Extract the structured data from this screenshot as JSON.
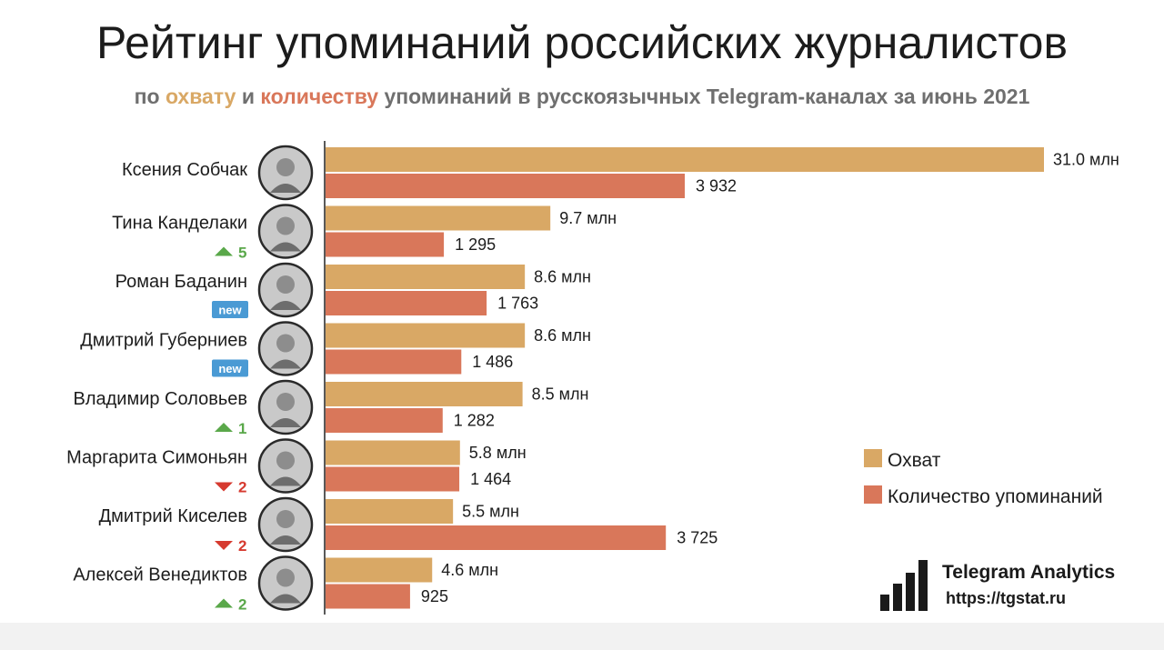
{
  "title": "Рейтинг упоминаний российских журналистов",
  "subtitle": {
    "part1": "по ",
    "reach_word": "охвату",
    "part2": " и ",
    "count_word": "количеству",
    "part3": " упоминаний в русскоязычных Telegram-каналах за июнь 2021"
  },
  "colors": {
    "reach": "#d9a865",
    "count": "#d9775a",
    "rank_up": "#5aa84a",
    "rank_down": "#d63a2f",
    "new_badge": "#4a9ad4"
  },
  "chart_data": {
    "type": "bar",
    "orientation": "horizontal",
    "categories": [
      "Ксения Собчак",
      "Тина Канделаки",
      "Роман Баданин",
      "Дмитрий Губерниев",
      "Владимир Соловьев",
      "Маргарита Симоньян",
      "Дмитрий Киселев",
      "Алексей Венедиктов"
    ],
    "series": [
      {
        "name": "Охват",
        "unit": "млн",
        "values": [
          31.0,
          9.7,
          8.6,
          8.6,
          8.5,
          5.8,
          5.5,
          4.6
        ],
        "labels": [
          "31.0 млн",
          "9.7 млн",
          "8.6 млн",
          "8.6 млн",
          "8.5 млн",
          "5.8 млн",
          "5.5 млн",
          "4.6 млн"
        ]
      },
      {
        "name": "Количество упоминаний",
        "values": [
          3932,
          1295,
          1763,
          1486,
          1282,
          1464,
          3725,
          925
        ],
        "labels": [
          "3 932",
          "1 295",
          "1 763",
          "1 486",
          "1 282",
          "1 464",
          "3 725",
          "925"
        ]
      }
    ],
    "rank_changes": [
      {
        "type": "none",
        "text": ""
      },
      {
        "type": "up",
        "text": "5"
      },
      {
        "type": "new",
        "text": "new"
      },
      {
        "type": "new",
        "text": "new"
      },
      {
        "type": "up",
        "text": "1"
      },
      {
        "type": "down",
        "text": "2"
      },
      {
        "type": "down",
        "text": "2"
      },
      {
        "type": "up",
        "text": "2"
      }
    ],
    "legend": [
      "Охват",
      "Количество упоминаний"
    ],
    "legend_position": "right",
    "grid": false
  },
  "brand": {
    "name": "Telegram Analytics",
    "url": "https://tgstat.ru"
  }
}
